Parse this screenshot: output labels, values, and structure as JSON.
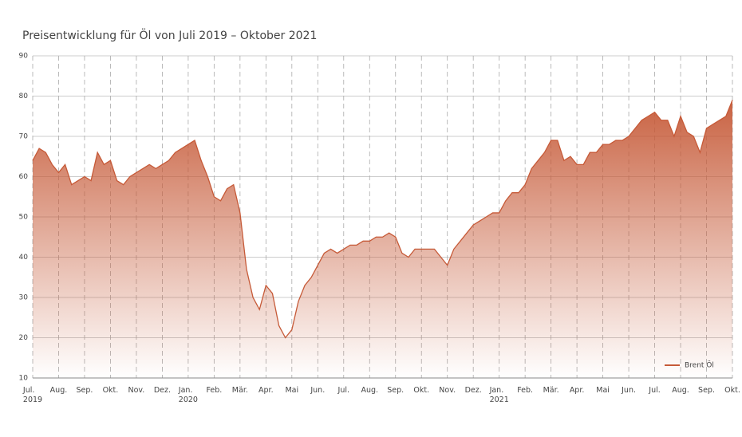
{
  "chart_data": {
    "type": "line",
    "title": "Preisentwicklung für Öl von Juli 2019 – Oktober 2021",
    "categories": [
      "Jul.\n2019",
      null,
      null,
      null,
      "Aug.",
      null,
      null,
      null,
      "Sep.",
      null,
      null,
      null,
      "Okt.",
      null,
      null,
      null,
      "Nov.",
      null,
      null,
      null,
      "Dez.",
      null,
      null,
      null,
      "Jan.\n2020",
      null,
      null,
      null,
      "Feb.",
      null,
      null,
      null,
      "Mär.",
      null,
      null,
      null,
      "Apr.",
      null,
      null,
      null,
      "Mai",
      null,
      null,
      null,
      "Jun.",
      null,
      null,
      null,
      "Jul.",
      null,
      null,
      null,
      "Aug.",
      null,
      null,
      null,
      "Sep.",
      null,
      null,
      null,
      "Okt.",
      null,
      null,
      null,
      "Nov.",
      null,
      null,
      null,
      "Dez.",
      null,
      null,
      null,
      "Jan.\n2021",
      null,
      null,
      null,
      "Feb.",
      null,
      null,
      null,
      "Mär.",
      null,
      null,
      null,
      "Apr.",
      null,
      null,
      null,
      "Mai",
      null,
      null,
      null,
      "Jun.",
      null,
      null,
      null,
      "Jul.",
      null,
      null,
      null,
      "Aug.",
      null,
      null,
      null,
      "Sep.",
      null,
      null,
      null,
      "Okt."
    ],
    "series": [
      {
        "name": "Brent Öl",
        "color": "#c65a38",
        "values": [
          64,
          67,
          66,
          63,
          61,
          63,
          58,
          59,
          60,
          59,
          66,
          63,
          64,
          59,
          58,
          60,
          61,
          62,
          63,
          62,
          63,
          64,
          66,
          67,
          68,
          69,
          64,
          60,
          55,
          54,
          57,
          58,
          51,
          37,
          30,
          27,
          33,
          31,
          23,
          20,
          22,
          29,
          33,
          35,
          38,
          41,
          42,
          41,
          42,
          43,
          43,
          44,
          44,
          45,
          45,
          46,
          45,
          41,
          40,
          42,
          42,
          42,
          42,
          40,
          38,
          42,
          44,
          46,
          48,
          49,
          50,
          51,
          51,
          54,
          56,
          56,
          58,
          62,
          64,
          66,
          69,
          69,
          64,
          65,
          63,
          63,
          66,
          66,
          68,
          68,
          69,
          69,
          70,
          72,
          74,
          75,
          76,
          74,
          74,
          70,
          75,
          71,
          70,
          66,
          72,
          73,
          74,
          75,
          79
        ]
      }
    ],
    "ylim": [
      10,
      90
    ],
    "yticks": [
      10,
      20,
      30,
      40,
      50,
      60,
      70,
      80,
      90
    ],
    "grid": true,
    "legend": "bottom-right"
  }
}
